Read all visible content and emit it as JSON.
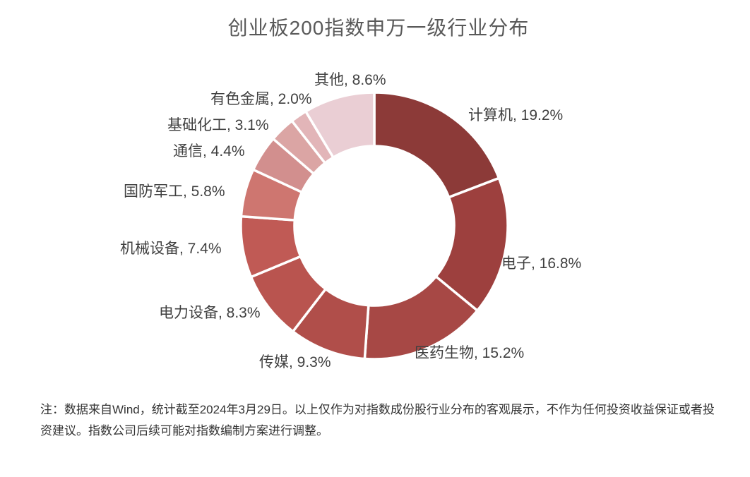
{
  "title": "创业板200指数申万一级行业分布",
  "chart_data": {
    "type": "pie",
    "subtype": "donut",
    "title": "创业板200指数申万一级行业分布",
    "unit": "%",
    "direction": "clockwise",
    "start_angle_deg": 0,
    "donut_hole_ratio": 0.6,
    "legend_position": "labels-around",
    "categories": [
      "计算机",
      "电子",
      "医药生物",
      "传媒",
      "电力设备",
      "机械设备",
      "国防军工",
      "通信",
      "基础化工",
      "有色金属",
      "其他"
    ],
    "values": [
      19.2,
      16.8,
      15.2,
      9.3,
      8.3,
      7.4,
      5.8,
      4.4,
      3.1,
      2.0,
      8.6
    ],
    "segments": [
      {
        "name": "计算机",
        "value": 19.2,
        "label": "计算机, 19.2%",
        "color": "#8C3A38"
      },
      {
        "name": "电子",
        "value": 16.8,
        "label": "电子, 16.8%",
        "color": "#9D403E"
      },
      {
        "name": "医药生物",
        "value": 15.2,
        "label": "医药生物, 15.2%",
        "color": "#A74845"
      },
      {
        "name": "传媒",
        "value": 9.3,
        "label": "传媒, 9.3%",
        "color": "#B04E4A"
      },
      {
        "name": "电力设备",
        "value": 8.3,
        "label": "电力设备, 8.3%",
        "color": "#B9544F"
      },
      {
        "name": "机械设备",
        "value": 7.4,
        "label": "机械设备, 7.4%",
        "color": "#C05A55"
      },
      {
        "name": "国防军工",
        "value": 5.8,
        "label": "国防军工, 5.8%",
        "color": "#CE7670"
      },
      {
        "name": "通信",
        "value": 4.4,
        "label": "通信, 4.4%",
        "color": "#D28F8E"
      },
      {
        "name": "基础化工",
        "value": 3.1,
        "label": "基础化工, 3.1%",
        "color": "#DBA5A4"
      },
      {
        "name": "有色金属",
        "value": 2.0,
        "label": "有色金属, 2.0%",
        "color": "#E2B5B8"
      },
      {
        "name": "其他",
        "value": 8.6,
        "label": "其他, 8.6%",
        "color": "#EACED4"
      }
    ],
    "separator_color": "#FFFFFF"
  },
  "footnote": "注：数据来自Wind，统计截至2024年3月29日。以上仅作为对指数成份股行业分布的客观展示，不作为任何投资收益保证或者投资建议。指数公司后续可能对指数编制方案进行调整。"
}
